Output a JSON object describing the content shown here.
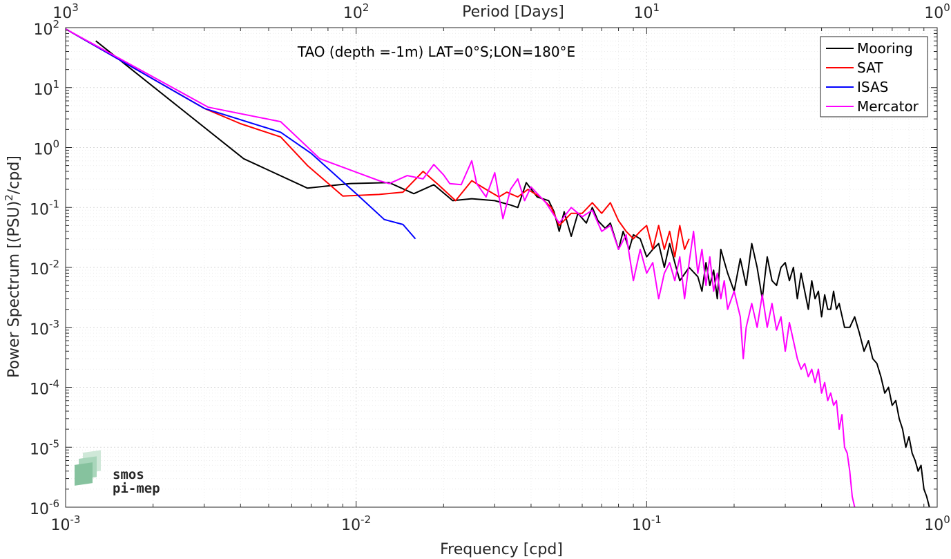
{
  "chart_data": {
    "type": "line",
    "title": "",
    "annotation": "TAO (depth =-1m) LAT=0°S;LON=180°E",
    "xlabel": "Frequency [cpd]",
    "x2label": "Period [Days]",
    "ylabel_main": "Power Spectrum [(PSU)",
    "ylabel_sup": "2",
    "ylabel_tail": "/cpd]",
    "x_scale": "log",
    "y_scale": "log",
    "xlim": [
      0.001,
      1
    ],
    "ylim": [
      1e-06,
      100
    ],
    "x2lim": [
      1000,
      1
    ],
    "grid": true,
    "legend_position": "top-right",
    "x_ticks": [
      {
        "value": 0.001,
        "base": "10",
        "exp": "-3"
      },
      {
        "value": 0.01,
        "base": "10",
        "exp": "-2"
      },
      {
        "value": 0.1,
        "base": "10",
        "exp": "-1"
      },
      {
        "value": 1,
        "base": "10",
        "exp": "0"
      }
    ],
    "x2_ticks": [
      {
        "value": 0.001,
        "base": "10",
        "exp": "3"
      },
      {
        "value": 0.01,
        "base": "10",
        "exp": "2"
      },
      {
        "value": 0.1,
        "base": "10",
        "exp": "1"
      },
      {
        "value": 1,
        "base": "10",
        "exp": "0"
      }
    ],
    "y_ticks": [
      {
        "value": 100,
        "base": "10",
        "exp": "2"
      },
      {
        "value": 10,
        "base": "10",
        "exp": "1"
      },
      {
        "value": 1,
        "base": "10",
        "exp": "0"
      },
      {
        "value": 0.1,
        "base": "10",
        "exp": "-1"
      },
      {
        "value": 0.01,
        "base": "10",
        "exp": "-2"
      },
      {
        "value": 0.001,
        "base": "10",
        "exp": "-3"
      },
      {
        "value": 0.0001,
        "base": "10",
        "exp": "-4"
      },
      {
        "value": 1e-05,
        "base": "10",
        "exp": "-5"
      },
      {
        "value": 1e-06,
        "base": "10",
        "exp": "-6"
      }
    ],
    "series": [
      {
        "name": "Mooring",
        "color": "#000000",
        "points": [
          [
            0.00127,
            60
          ],
          [
            0.0041,
            0.65
          ],
          [
            0.0068,
            0.21
          ],
          [
            0.0095,
            0.25
          ],
          [
            0.013,
            0.26
          ],
          [
            0.0158,
            0.17
          ],
          [
            0.0185,
            0.24
          ],
          [
            0.0215,
            0.13
          ],
          [
            0.025,
            0.14
          ],
          [
            0.03,
            0.13
          ],
          [
            0.034,
            0.11
          ],
          [
            0.036,
            0.1
          ],
          [
            0.0385,
            0.26
          ],
          [
            0.042,
            0.15
          ],
          [
            0.046,
            0.13
          ],
          [
            0.048,
            0.085
          ],
          [
            0.05,
            0.04
          ],
          [
            0.052,
            0.085
          ],
          [
            0.055,
            0.033
          ],
          [
            0.058,
            0.08
          ],
          [
            0.062,
            0.055
          ],
          [
            0.065,
            0.1
          ],
          [
            0.068,
            0.06
          ],
          [
            0.072,
            0.045
          ],
          [
            0.075,
            0.055
          ],
          [
            0.078,
            0.03
          ],
          [
            0.08,
            0.02
          ],
          [
            0.083,
            0.04
          ],
          [
            0.087,
            0.02
          ],
          [
            0.09,
            0.035
          ],
          [
            0.095,
            0.03
          ],
          [
            0.1,
            0.015
          ],
          [
            0.105,
            0.02
          ],
          [
            0.11,
            0.025
          ],
          [
            0.115,
            0.01
          ],
          [
            0.12,
            0.025
          ],
          [
            0.125,
            0.012
          ],
          [
            0.13,
            0.006
          ],
          [
            0.14,
            0.01
          ],
          [
            0.15,
            0.007
          ],
          [
            0.155,
            0.004
          ],
          [
            0.16,
            0.012
          ],
          [
            0.165,
            0.005
          ],
          [
            0.17,
            0.009
          ],
          [
            0.175,
            0.003
          ],
          [
            0.18,
            0.02
          ],
          [
            0.19,
            0.008
          ],
          [
            0.2,
            0.004
          ],
          [
            0.21,
            0.014
          ],
          [
            0.22,
            0.005
          ],
          [
            0.23,
            0.025
          ],
          [
            0.24,
            0.01
          ],
          [
            0.25,
            0.003
          ],
          [
            0.26,
            0.015
          ],
          [
            0.27,
            0.006
          ],
          [
            0.28,
            0.005
          ],
          [
            0.29,
            0.01
          ],
          [
            0.3,
            0.012
          ],
          [
            0.31,
            0.006
          ],
          [
            0.32,
            0.01
          ],
          [
            0.33,
            0.003
          ],
          [
            0.34,
            0.008
          ],
          [
            0.35,
            0.004
          ],
          [
            0.36,
            0.002
          ],
          [
            0.37,
            0.006
          ],
          [
            0.38,
            0.003
          ],
          [
            0.39,
            0.004
          ],
          [
            0.4,
            0.0015
          ],
          [
            0.41,
            0.0035
          ],
          [
            0.42,
            0.002
          ],
          [
            0.43,
            0.002
          ],
          [
            0.44,
            0.004
          ],
          [
            0.45,
            0.002
          ],
          [
            0.46,
            0.0025
          ],
          [
            0.48,
            0.001
          ],
          [
            0.5,
            0.001
          ],
          [
            0.52,
            0.0015
          ],
          [
            0.54,
            0.0008
          ],
          [
            0.56,
            0.0004
          ],
          [
            0.58,
            0.0006
          ],
          [
            0.6,
            0.0003
          ],
          [
            0.62,
            0.00025
          ],
          [
            0.64,
            0.00015
          ],
          [
            0.66,
            8e-05
          ],
          [
            0.68,
            0.0001
          ],
          [
            0.7,
            5e-05
          ],
          [
            0.72,
            6e-05
          ],
          [
            0.74,
            3e-05
          ],
          [
            0.76,
            2e-05
          ],
          [
            0.78,
            1e-05
          ],
          [
            0.8,
            1.5e-05
          ],
          [
            0.82,
            8e-06
          ],
          [
            0.84,
            6e-06
          ],
          [
            0.86,
            4e-06
          ],
          [
            0.88,
            5e-06
          ],
          [
            0.9,
            2e-06
          ],
          [
            0.92,
            1.5e-06
          ],
          [
            0.94,
            1e-06
          ]
        ]
      },
      {
        "name": "SAT",
        "color": "#ff0000",
        "points": [
          [
            0.001,
            95
          ],
          [
            0.003,
            4.5
          ],
          [
            0.004,
            2.5
          ],
          [
            0.0055,
            1.5
          ],
          [
            0.0068,
            0.5
          ],
          [
            0.009,
            0.155
          ],
          [
            0.012,
            0.165
          ],
          [
            0.0145,
            0.18
          ],
          [
            0.017,
            0.4
          ],
          [
            0.019,
            0.25
          ],
          [
            0.022,
            0.13
          ],
          [
            0.025,
            0.28
          ],
          [
            0.028,
            0.2
          ],
          [
            0.031,
            0.15
          ],
          [
            0.033,
            0.18
          ],
          [
            0.036,
            0.15
          ],
          [
            0.039,
            0.2
          ],
          [
            0.043,
            0.15
          ],
          [
            0.047,
            0.1
          ],
          [
            0.05,
            0.05
          ],
          [
            0.055,
            0.08
          ],
          [
            0.06,
            0.08
          ],
          [
            0.065,
            0.12
          ],
          [
            0.07,
            0.08
          ],
          [
            0.075,
            0.12
          ],
          [
            0.08,
            0.06
          ],
          [
            0.085,
            0.04
          ],
          [
            0.09,
            0.03
          ],
          [
            0.095,
            0.04
          ],
          [
            0.1,
            0.05
          ],
          [
            0.105,
            0.02
          ],
          [
            0.11,
            0.05
          ],
          [
            0.115,
            0.02
          ],
          [
            0.12,
            0.04
          ],
          [
            0.125,
            0.015
          ],
          [
            0.13,
            0.05
          ],
          [
            0.135,
            0.02
          ],
          [
            0.14,
            0.03
          ]
        ]
      },
      {
        "name": "ISAS",
        "color": "#0000ff",
        "points": [
          [
            0.001,
            95
          ],
          [
            0.003,
            4.5
          ],
          [
            0.0055,
            1.8
          ],
          [
            0.007,
            0.8
          ],
          [
            0.01,
            0.17
          ],
          [
            0.0125,
            0.063
          ],
          [
            0.0145,
            0.052
          ],
          [
            0.016,
            0.03
          ]
        ]
      },
      {
        "name": "Mercator",
        "color": "#ff00ff",
        "points": [
          [
            0.001,
            95
          ],
          [
            0.0031,
            4.7
          ],
          [
            0.0055,
            2.7
          ],
          [
            0.0075,
            0.65
          ],
          [
            0.012,
            0.28
          ],
          [
            0.013,
            0.25
          ],
          [
            0.015,
            0.34
          ],
          [
            0.017,
            0.3
          ],
          [
            0.0185,
            0.52
          ],
          [
            0.02,
            0.35
          ],
          [
            0.021,
            0.25
          ],
          [
            0.023,
            0.24
          ],
          [
            0.025,
            0.6
          ],
          [
            0.026,
            0.25
          ],
          [
            0.028,
            0.15
          ],
          [
            0.03,
            0.38
          ],
          [
            0.032,
            0.065
          ],
          [
            0.034,
            0.2
          ],
          [
            0.036,
            0.3
          ],
          [
            0.038,
            0.13
          ],
          [
            0.04,
            0.22
          ],
          [
            0.045,
            0.12
          ],
          [
            0.05,
            0.055
          ],
          [
            0.055,
            0.1
          ],
          [
            0.06,
            0.07
          ],
          [
            0.065,
            0.09
          ],
          [
            0.07,
            0.04
          ],
          [
            0.075,
            0.05
          ],
          [
            0.08,
            0.02
          ],
          [
            0.085,
            0.035
          ],
          [
            0.09,
            0.006
          ],
          [
            0.095,
            0.02
          ],
          [
            0.1,
            0.008
          ],
          [
            0.105,
            0.012
          ],
          [
            0.11,
            0.003
          ],
          [
            0.115,
            0.008
          ],
          [
            0.12,
            0.012
          ],
          [
            0.125,
            0.006
          ],
          [
            0.13,
            0.015
          ],
          [
            0.135,
            0.003
          ],
          [
            0.14,
            0.012
          ],
          [
            0.145,
            0.04
          ],
          [
            0.15,
            0.008
          ],
          [
            0.155,
            0.02
          ],
          [
            0.16,
            0.005
          ],
          [
            0.165,
            0.015
          ],
          [
            0.17,
            0.004
          ],
          [
            0.175,
            0.008
          ],
          [
            0.18,
            0.003
          ],
          [
            0.185,
            0.006
          ],
          [
            0.19,
            0.002
          ],
          [
            0.2,
            0.004
          ],
          [
            0.21,
            0.0015
          ],
          [
            0.215,
            0.0003
          ],
          [
            0.22,
            0.001
          ],
          [
            0.23,
            0.0025
          ],
          [
            0.24,
            0.001
          ],
          [
            0.25,
            0.0035
          ],
          [
            0.26,
            0.001
          ],
          [
            0.27,
            0.0025
          ],
          [
            0.28,
            0.0009
          ],
          [
            0.29,
            0.0015
          ],
          [
            0.3,
            0.0004
          ],
          [
            0.31,
            0.0012
          ],
          [
            0.32,
            0.0006
          ],
          [
            0.33,
            0.0003
          ],
          [
            0.34,
            0.0002
          ],
          [
            0.35,
            0.00025
          ],
          [
            0.36,
            0.00015
          ],
          [
            0.37,
            0.0002
          ],
          [
            0.38,
            0.00012
          ],
          [
            0.39,
            0.0002
          ],
          [
            0.4,
            8e-05
          ],
          [
            0.41,
            0.00012
          ],
          [
            0.42,
            6e-05
          ],
          [
            0.43,
            8e-05
          ],
          [
            0.44,
            5e-05
          ],
          [
            0.45,
            6e-05
          ],
          [
            0.46,
            2e-05
          ],
          [
            0.47,
            3.5e-05
          ],
          [
            0.48,
            1e-05
          ],
          [
            0.49,
            8e-06
          ],
          [
            0.5,
            4e-06
          ],
          [
            0.51,
            1.5e-06
          ],
          [
            0.52,
            1e-06
          ]
        ]
      }
    ]
  },
  "logo": {
    "line1": "smos",
    "line2": "pi-mep",
    "color": "#7fbf9a"
  }
}
